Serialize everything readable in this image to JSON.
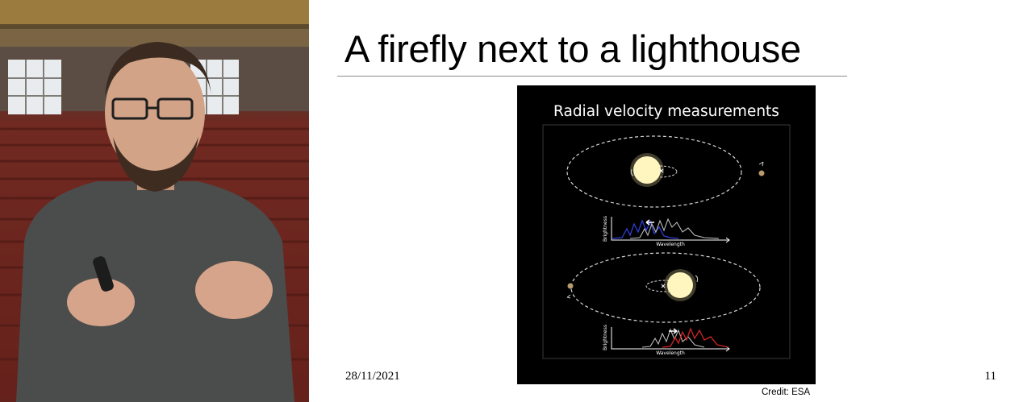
{
  "slide": {
    "title": "A firefly next to a lighthouse",
    "date": "28/11/2021",
    "page_number": "11",
    "credit": "Credit: ESA"
  },
  "figure": {
    "title": "Radial velocity measurements",
    "panels": [
      {
        "ylabel": "Brightness",
        "xlabel": "Wavelength",
        "shift": "blueshift",
        "shift_color": "#2f3fd8",
        "center_mark": "x"
      },
      {
        "ylabel": "Brightness",
        "xlabel": "Wavelength",
        "shift": "redshift",
        "shift_color": "#d02525",
        "center_mark": "x"
      }
    ]
  },
  "video": {
    "scene": "lecture-hall",
    "speaker": "presenter"
  }
}
